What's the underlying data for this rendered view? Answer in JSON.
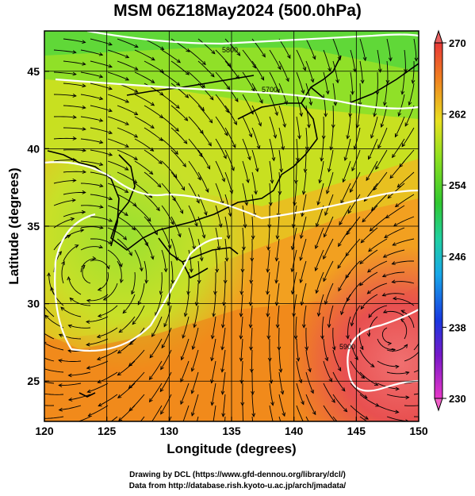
{
  "title": "MSM 06Z18May2024 (500.0hPa)",
  "xlabel": "Longitude (degrees)",
  "ylabel": "Latitude (degrees)",
  "x_ticks": [
    "120",
    "125",
    "130",
    "135",
    "140",
    "145",
    "150"
  ],
  "y_ticks": [
    "25",
    "30",
    "35",
    "40",
    "45"
  ],
  "x_range": [
    120,
    150
  ],
  "y_range": [
    22.4,
    47.6
  ],
  "colorbar": {
    "labels": [
      "270",
      "262",
      "254",
      "246",
      "238",
      "230"
    ],
    "min": 230,
    "max": 270
  },
  "contour_labels": [
    "5800",
    "5700",
    "5900"
  ],
  "credits": [
    "Drawing by DCL (https://www.gfd-dennou.org/library/dcl/)",
    "Data from http://database.rish.kyoto-u.ac.jp/arch/jmadata/"
  ]
}
